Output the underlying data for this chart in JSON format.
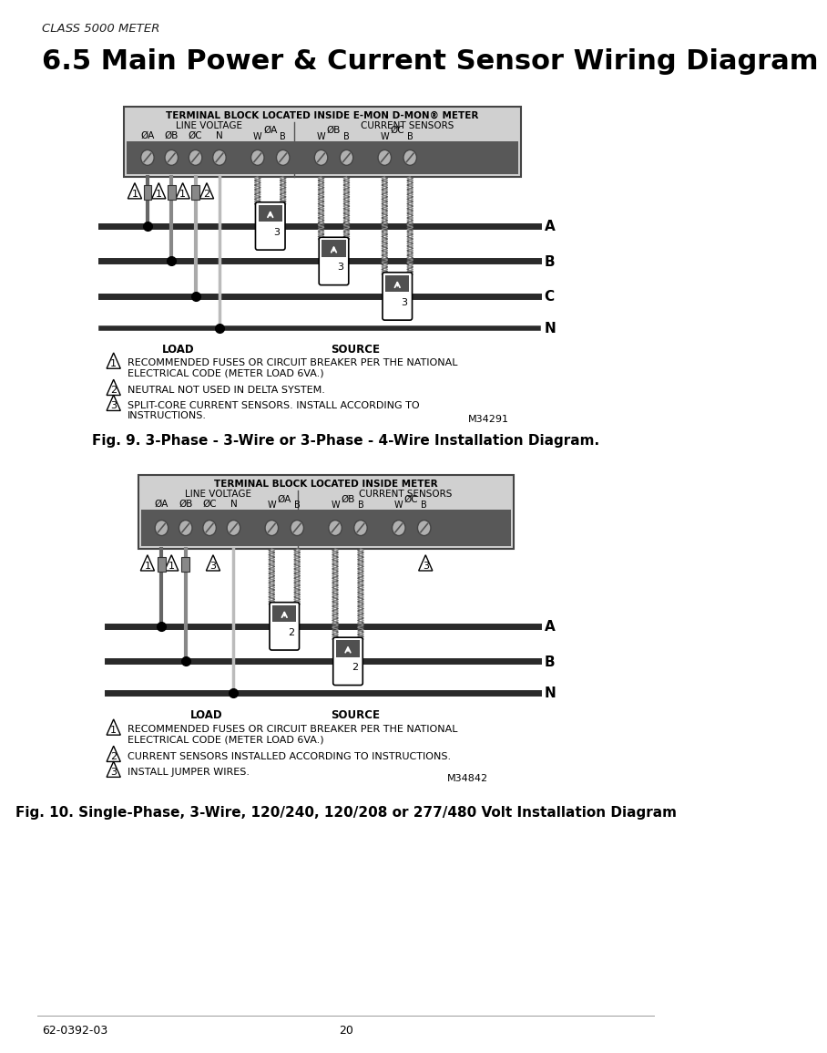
{
  "page_header": "CLASS 5000 METER",
  "section_title": "6.5 Main Power & Current Sensor Wiring Diagram",
  "fig9_caption": "Fig. 9. 3-Phase - 3-Wire or 3-Phase - 4-Wire Installation Diagram.",
  "fig10_caption": "Fig. 10. Single-Phase, 3-Wire, 120/240, 120/208 or 277/480 Volt Installation Diagram",
  "footer_left": "62-0392-03",
  "footer_center": "20",
  "diagram1": {
    "terminal_label": "TERMINAL BLOCK LOCATED INSIDE E-MON D-MON® METER",
    "line_voltage_label": "LINE VOLTAGE",
    "current_sensors_label": "CURRENT SENSORS",
    "phase_labels_line": [
      "ØA",
      "ØB",
      "ØC",
      "N"
    ],
    "phase_labels_cs": [
      "ØA",
      "ØB",
      "ØC"
    ],
    "wb_labels": [
      "W",
      "B",
      "W",
      "B",
      "W",
      "B"
    ],
    "wire_labels": [
      "A",
      "B",
      "C",
      "N"
    ],
    "load_label": "LOAD",
    "source_label": "SOURCE",
    "note1_line1": "RECOMMENDED FUSES OR CIRCUIT BREAKER PER THE NATIONAL",
    "note1_line2": "ELECTRICAL CODE (METER LOAD 6VA.)",
    "note2": "NEUTRAL NOT USED IN DELTA SYSTEM.",
    "note3_line1": "SPLIT-CORE CURRENT SENSORS. INSTALL ACCORDING TO",
    "note3_line2": "INSTRUCTIONS.",
    "part_number": "M34291"
  },
  "diagram2": {
    "terminal_label": "TERMINAL BLOCK LOCATED INSIDE METER",
    "line_voltage_label": "LINE VOLTAGE",
    "current_sensors_label": "CURRENT SENSORS",
    "phase_labels_line": [
      "ØA",
      "ØB",
      "ØC",
      "N"
    ],
    "phase_labels_cs": [
      "ØA",
      "ØB",
      "ØC"
    ],
    "wb_labels": [
      "W",
      "B",
      "W",
      "B",
      "W",
      "B"
    ],
    "wire_labels": [
      "A",
      "B",
      "N"
    ],
    "load_label": "LOAD",
    "source_label": "SOURCE",
    "note1_line1": "RECOMMENDED FUSES OR CIRCUIT BREAKER PER THE NATIONAL",
    "note1_line2": "ELECTRICAL CODE (METER LOAD 6VA.)",
    "note2": "CURRENT SENSORS INSTALLED ACCORDING TO INSTRUCTIONS.",
    "note3": "INSTALL JUMPER WIRES.",
    "part_number": "M34842"
  },
  "bg_color": "#ffffff",
  "terminal_bg": "#d0d0d0",
  "screw_bg": "#606060",
  "wire_dark": "#2a2a2a",
  "wire_med": "#777777",
  "wire_light": "#aaaaaa"
}
